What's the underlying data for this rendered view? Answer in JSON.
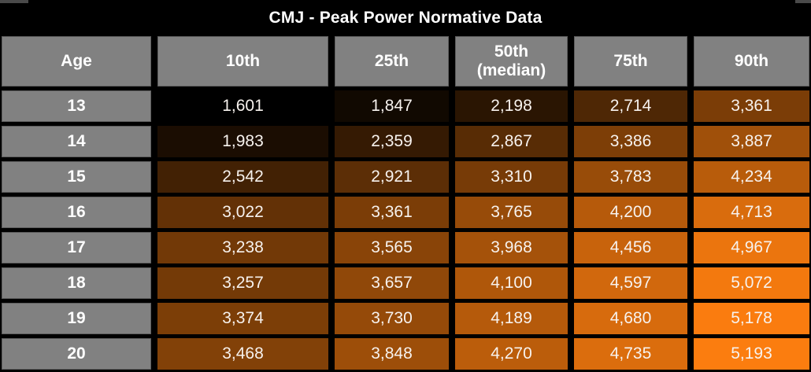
{
  "title": "CMJ - Peak Power Normative Data",
  "chart_data": {
    "type": "heatmap",
    "title": "CMJ - Peak Power Normative Data",
    "row_header_label": "Age",
    "column_headers": [
      "10th",
      "25th",
      "50th\n(median)",
      "75th",
      "90th"
    ],
    "row_labels": [
      "13",
      "14",
      "15",
      "16",
      "17",
      "18",
      "19",
      "20"
    ],
    "values": [
      [
        1601,
        1847,
        2198,
        2714,
        3361
      ],
      [
        1983,
        2359,
        2867,
        3386,
        3887
      ],
      [
        2542,
        2921,
        3310,
        3783,
        4234
      ],
      [
        3022,
        3361,
        3765,
        4200,
        4713
      ],
      [
        3238,
        3565,
        3968,
        4456,
        4967
      ],
      [
        3257,
        3657,
        4100,
        4597,
        5072
      ],
      [
        3374,
        3730,
        4189,
        4680,
        5178
      ],
      [
        3468,
        3848,
        4270,
        4735,
        5193
      ]
    ],
    "value_format": "thousands-comma",
    "color_scale": {
      "min_value": 1601,
      "max_value": 5193,
      "min_color": "#000000",
      "max_color": "#fb7d0f"
    },
    "legend": "none"
  },
  "colors": {
    "background": "#000000",
    "header_cell_bg": "#818181",
    "header_cell_border": "#5e5e5e",
    "header_text": "#ffffff",
    "value_text": "#f7f2ee"
  }
}
